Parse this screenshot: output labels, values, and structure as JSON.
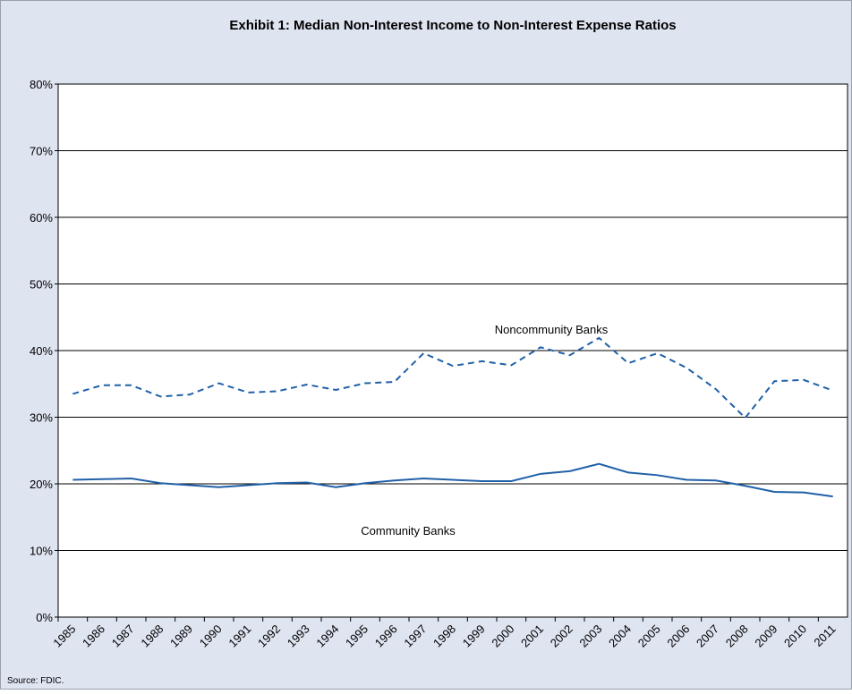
{
  "chart_data": {
    "type": "line",
    "title": "Exhibit 1: Median Non-Interest Income to Non-Interest Expense Ratios",
    "source": "Source: FDIC.",
    "categories": [
      "1985",
      "1986",
      "1987",
      "1988",
      "1989",
      "1990",
      "1991",
      "1992",
      "1993",
      "1994",
      "1995",
      "1996",
      "1997",
      "1998",
      "1999",
      "2000",
      "2001",
      "2002",
      "2003",
      "2004",
      "2005",
      "2006",
      "2007",
      "2008",
      "2009",
      "2010",
      "2011"
    ],
    "series": [
      {
        "name": "Noncommunity Banks",
        "color": "#2060a8",
        "line_style": "dashed",
        "values": [
          33.5,
          34.8,
          34.8,
          33.1,
          33.4,
          35.1,
          33.7,
          33.9,
          34.9,
          34.1,
          35.1,
          35.3,
          39.6,
          37.7,
          38.4,
          37.8,
          40.5,
          39.3,
          41.9,
          38.1,
          39.6,
          37.4,
          34.2,
          29.9,
          35.4,
          35.6,
          34.0
        ]
      },
      {
        "name": "Community Banks",
        "color": "#2060a8",
        "line_style": "solid",
        "values": [
          20.6,
          20.7,
          20.8,
          20.1,
          19.8,
          19.5,
          19.8,
          20.1,
          20.2,
          19.5,
          20.1,
          20.5,
          20.8,
          20.6,
          20.4,
          20.4,
          21.5,
          21.9,
          23.0,
          21.7,
          21.3,
          20.6,
          20.5,
          19.7,
          18.8,
          18.7,
          18.1
        ]
      }
    ],
    "ylim": [
      0,
      80
    ],
    "yticks": [
      {
        "value": 0,
        "label": "0%"
      },
      {
        "value": 10,
        "label": "10%"
      },
      {
        "value": 20,
        "label": "20%"
      },
      {
        "value": 30,
        "label": "30%"
      },
      {
        "value": 40,
        "label": "40%"
      },
      {
        "value": 50,
        "label": "50%"
      },
      {
        "value": 60,
        "label": "60%"
      },
      {
        "value": 70,
        "label": "70%"
      },
      {
        "value": 80,
        "label": "80%"
      }
    ],
    "grid": true
  }
}
